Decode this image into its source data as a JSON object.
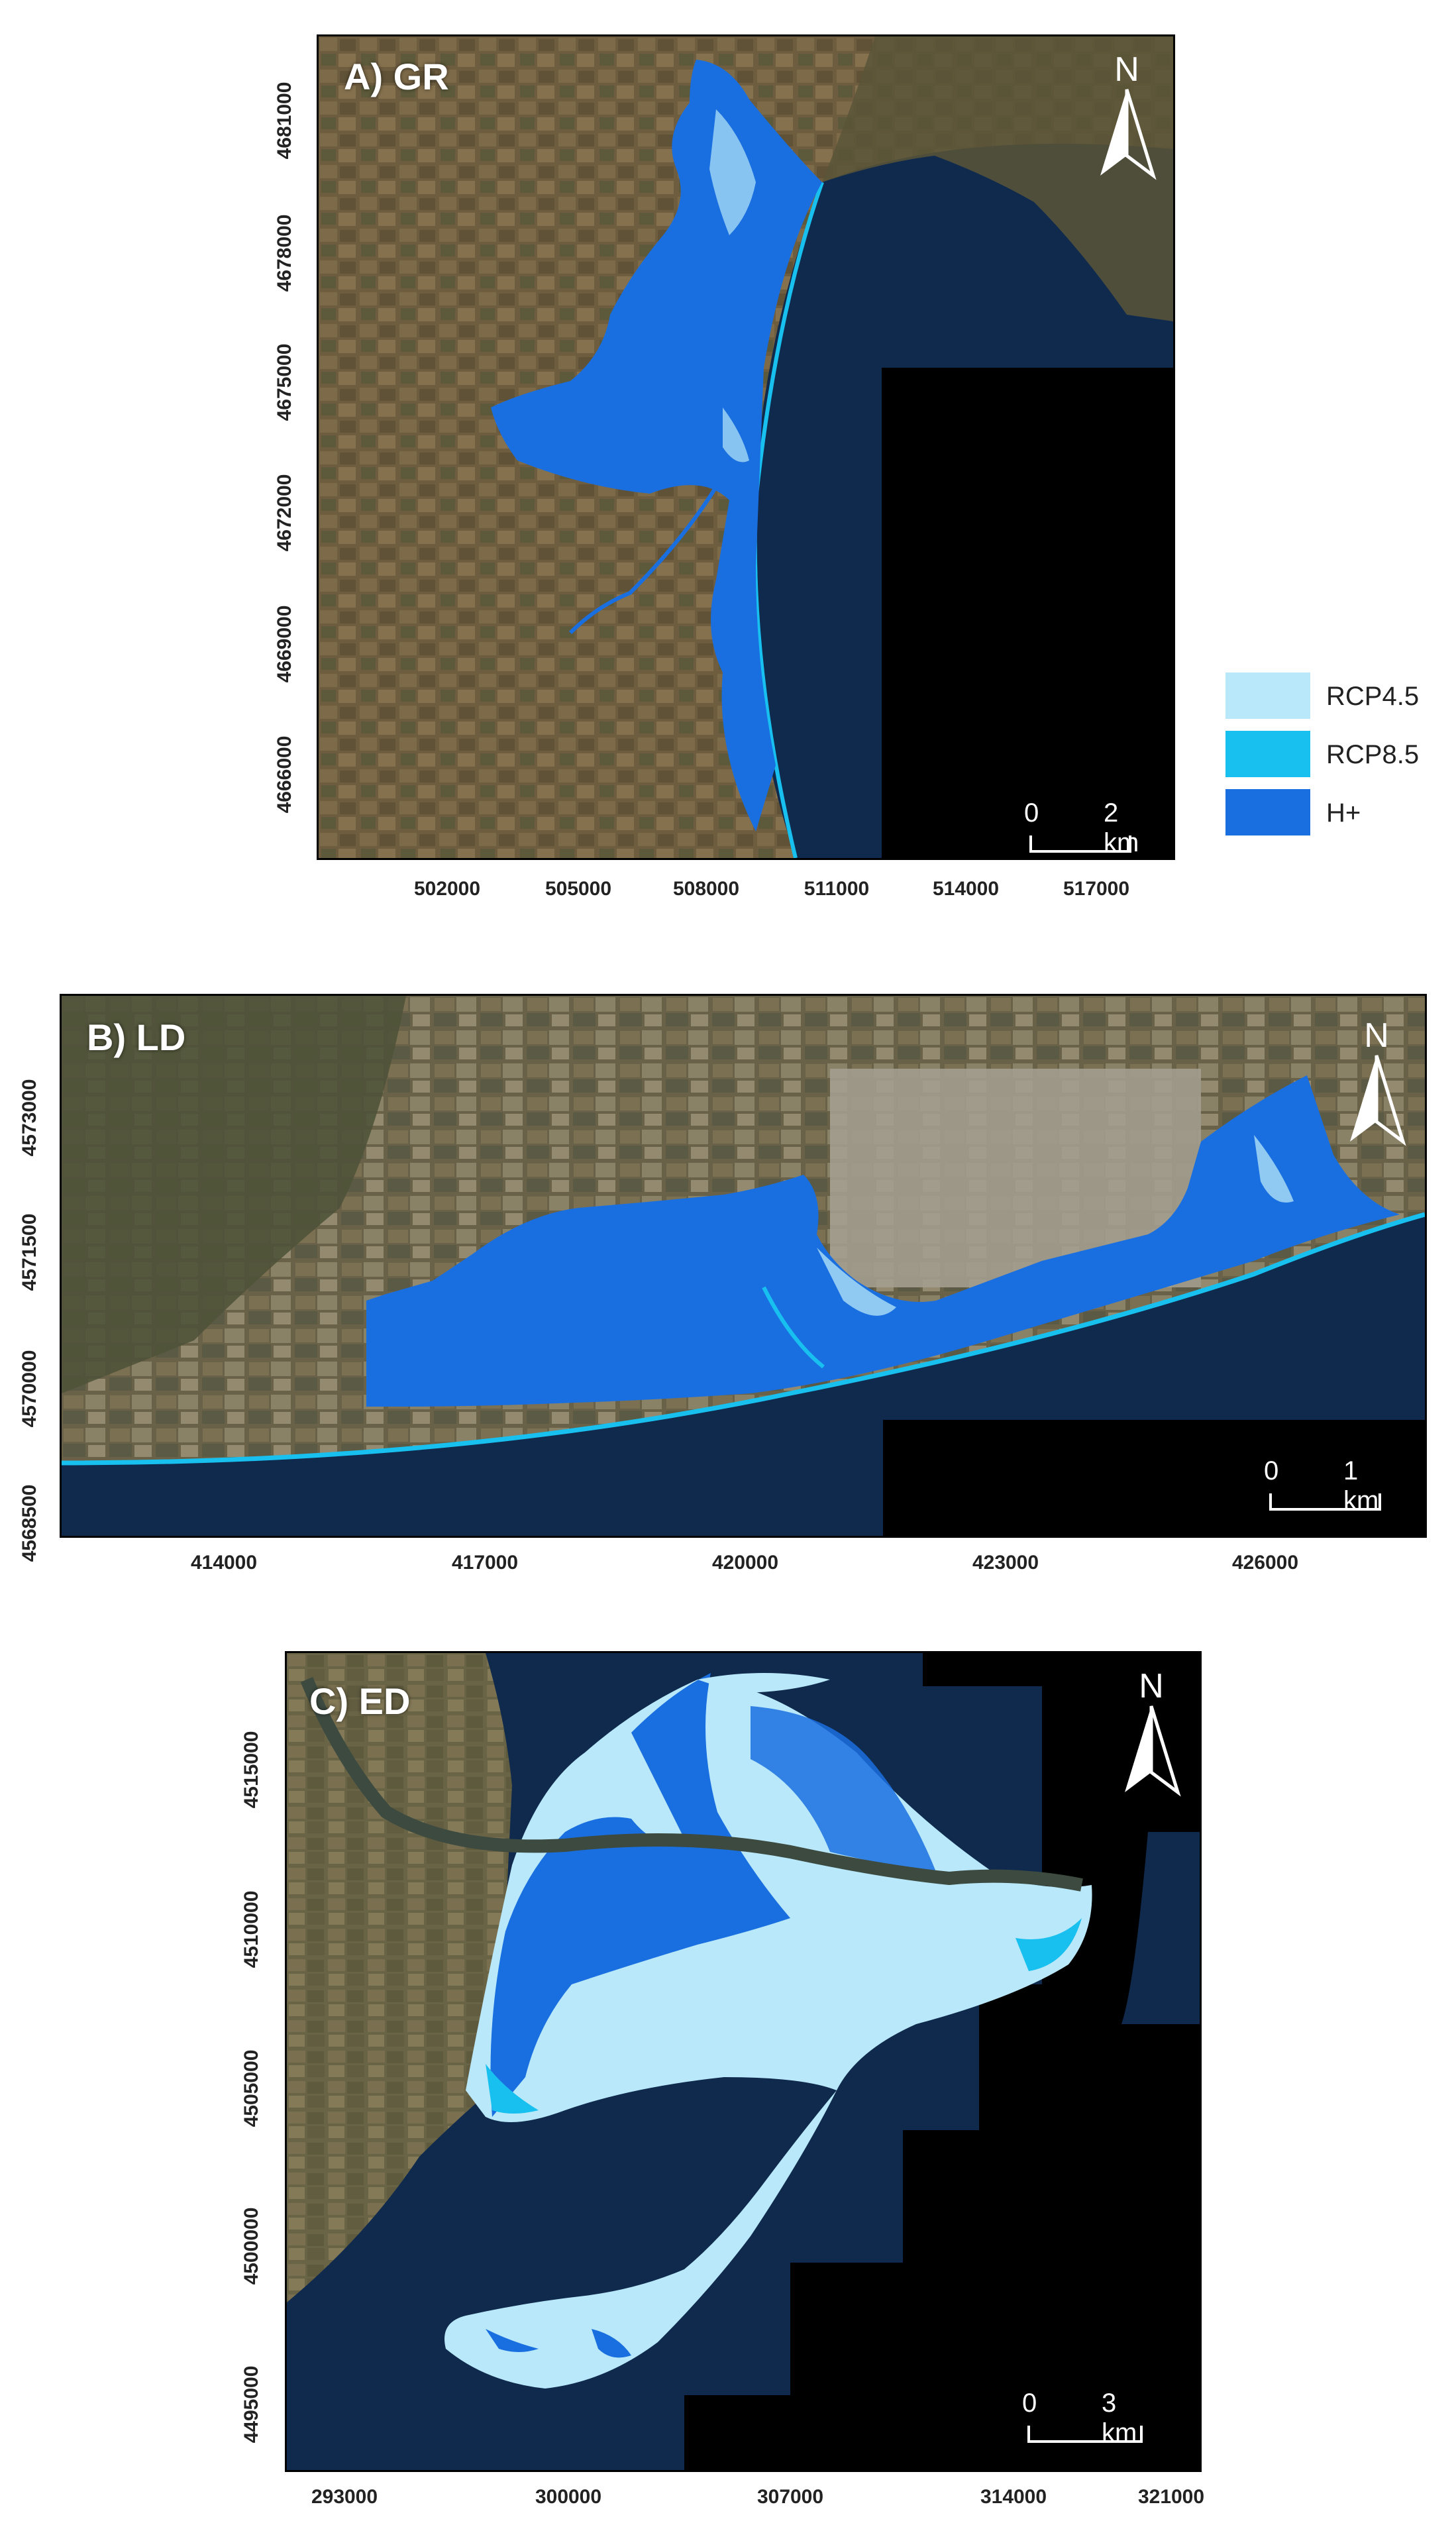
{
  "legend": {
    "items": [
      {
        "label": "RCP4.5",
        "color": "#b8e8fa"
      },
      {
        "label": "RCP8.5",
        "color": "#18c0f0"
      },
      {
        "label": "H+",
        "color": "#1a6fe0"
      }
    ]
  },
  "panels": [
    {
      "id": "A",
      "label": "A) GR",
      "north_symbol": "N",
      "north_icon": "north-arrow-icon",
      "scale": {
        "zero": "0",
        "end": "2 km"
      },
      "y_ticks": [
        "4681000",
        "4678000",
        "4675000",
        "4672000",
        "4669000",
        "4666000"
      ],
      "x_ticks": [
        "502000",
        "505000",
        "508000",
        "511000",
        "514000",
        "517000"
      ]
    },
    {
      "id": "B",
      "label": "B) LD",
      "north_symbol": "N",
      "north_icon": "north-arrow-icon",
      "scale": {
        "zero": "0",
        "end": "1 km"
      },
      "y_ticks": [
        "4573000",
        "4571500",
        "4570000",
        "4568500"
      ],
      "x_ticks": [
        "414000",
        "417000",
        "420000",
        "423000",
        "426000"
      ]
    },
    {
      "id": "C",
      "label": "C) ED",
      "north_symbol": "N",
      "north_icon": "north-arrow-icon",
      "scale": {
        "zero": "0",
        "end": "3 km"
      },
      "y_ticks": [
        "4515000",
        "4510000",
        "4505000",
        "4500000",
        "4495000"
      ],
      "x_ticks": [
        "293000",
        "300000",
        "307000",
        "314000",
        "321000"
      ]
    }
  ],
  "colors": {
    "land": "#6b5a3e",
    "sea": "#0f2a4d",
    "nodata": "#000000",
    "rcp45": "#b8e8fa",
    "rcp85": "#18c0f0",
    "hplus": "#1a6fe0"
  }
}
